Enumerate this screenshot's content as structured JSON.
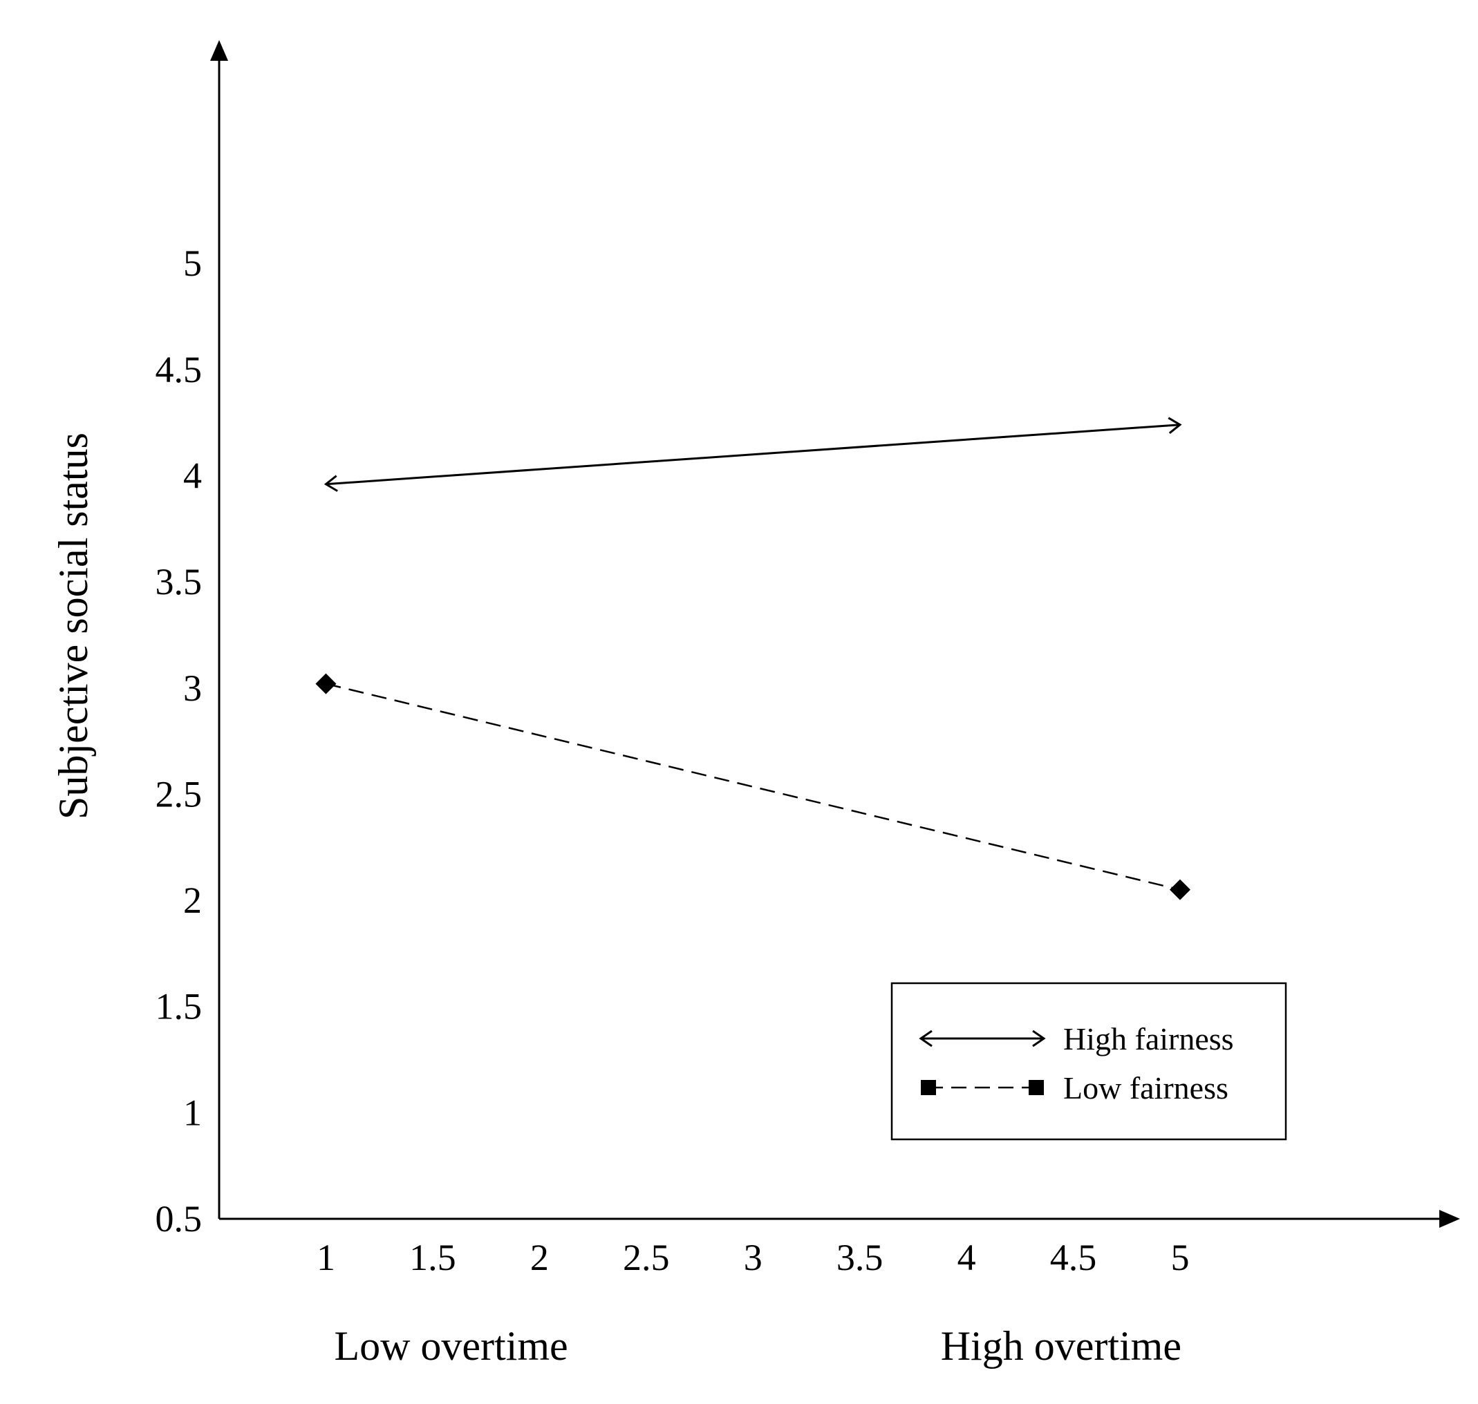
{
  "chart_data": {
    "type": "line",
    "title": "",
    "xlabel": "",
    "ylabel": "Subjective  social  status",
    "xlim": [
      0.5,
      6.24
    ],
    "ylim": [
      0.5,
      5.98
    ],
    "x_ticks": [
      "1",
      "1.5",
      "2",
      "2.5",
      "3",
      "3.5",
      "4",
      "4.5",
      "5"
    ],
    "y_ticks": [
      "0.5",
      "1",
      "1.5",
      "2",
      "2.5",
      "3",
      "3.5",
      "4",
      "4.5",
      "5"
    ],
    "x_category_labels": [
      {
        "x": 1,
        "label": "Low overtime"
      },
      {
        "x": 5,
        "label": "High overtime"
      }
    ],
    "grid": false,
    "legend_position": "bottom-right",
    "series": [
      {
        "name": "High  fairness",
        "style": "solid",
        "marker": "arrow",
        "x": [
          1,
          5
        ],
        "y": [
          3.96,
          4.24
        ]
      },
      {
        "name": "Low  fairness",
        "style": "dashed",
        "marker": "diamond",
        "x": [
          1,
          5
        ],
        "y": [
          3.02,
          2.05
        ]
      }
    ]
  }
}
